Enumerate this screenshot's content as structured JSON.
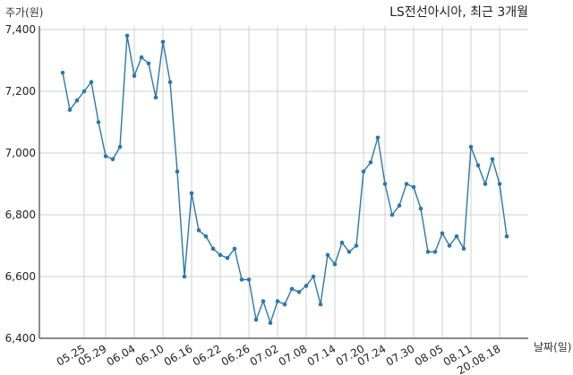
{
  "chart_data": {
    "type": "line",
    "title": "LS전선아시아, 최근 3개월",
    "ylabel": "주가(원)",
    "xlabel": "날짜(일)",
    "ylim": [
      6400,
      7400
    ],
    "yticks": [
      6400,
      6600,
      6800,
      7000,
      7200,
      7400
    ],
    "ytick_labels": [
      "6,400",
      "6,600",
      "6,800",
      "7,000",
      "7,200",
      "7,400"
    ],
    "xtick_labels": [
      "05.25",
      "05.29",
      "06.04",
      "06.10",
      "06.16",
      "06.22",
      "06.26",
      "07.02",
      "07.08",
      "07.14",
      "07.20",
      "07.24",
      "07.30",
      "08.05",
      "08.11",
      "20.08.18"
    ],
    "xtick_index": [
      3,
      6,
      10,
      14,
      18,
      22,
      26,
      30,
      34,
      38,
      42,
      45,
      49,
      53,
      57,
      61
    ],
    "grid": true,
    "color": "#2878b0",
    "series": [
      {
        "values": [
          7260,
          7140,
          7170,
          7200,
          7230,
          7100,
          6990,
          6980,
          7020,
          7380,
          7250,
          7310,
          7290,
          7180,
          7360,
          7230,
          6940,
          6600,
          6870,
          6750,
          6730,
          6690,
          6670,
          6660,
          6690,
          6590,
          6590,
          6460,
          6520,
          6450,
          6520,
          6510,
          6560,
          6550,
          6570,
          6600,
          6510,
          6670,
          6640,
          6710,
          6680,
          6700,
          6940,
          6970,
          7050,
          6900,
          6800,
          6830,
          6900,
          6890,
          6820,
          6680,
          6680,
          6740,
          6700,
          6730,
          6690,
          7020,
          6960,
          6900,
          6980,
          6900,
          6730
        ]
      }
    ]
  }
}
